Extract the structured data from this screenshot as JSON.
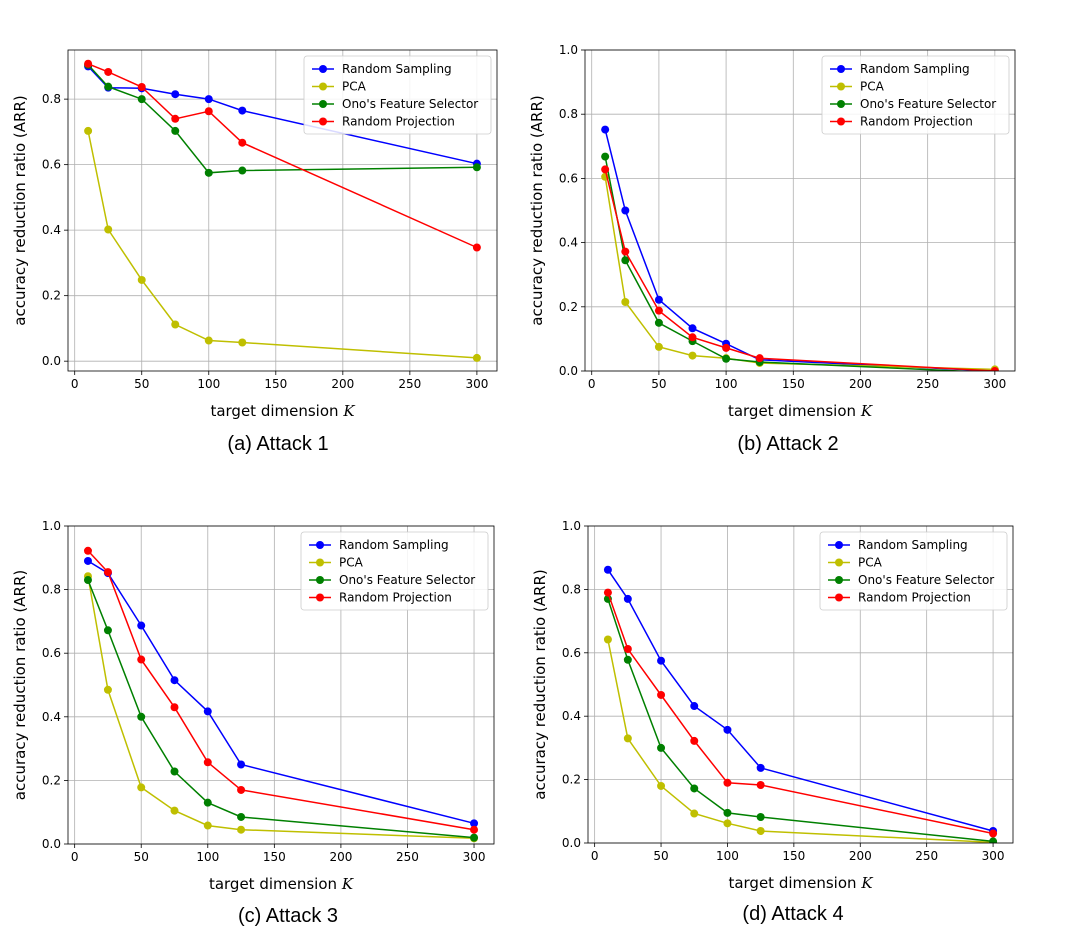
{
  "colors": {
    "Random Sampling": "#0000ff",
    "PCA": "#bfbf00",
    "Ono's Feature Selector": "#008000",
    "Random Projection": "#ff0000"
  },
  "chart_data": [
    {
      "type": "line",
      "caption": "(a)  Attack 1",
      "xlabel": "target dimension",
      "xlabel_var": "K",
      "ylabel": "accuracy reduction ratio (ARR)",
      "xlim": [
        -5,
        315
      ],
      "ylim": [
        -0.03,
        0.95
      ],
      "xticks": [
        0,
        50,
        100,
        150,
        200,
        250,
        300
      ],
      "yticks": [
        0.0,
        0.2,
        0.4,
        0.6,
        0.8
      ],
      "x": [
        10,
        25,
        50,
        75,
        100,
        125,
        300
      ],
      "grid": true,
      "legend_loc": "upper right",
      "series": [
        {
          "name": "Random Sampling",
          "values": [
            0.9,
            0.835,
            0.833,
            0.815,
            0.8,
            0.765,
            0.603
          ]
        },
        {
          "name": "PCA",
          "values": [
            0.703,
            0.402,
            0.248,
            0.112,
            0.063,
            0.057,
            0.01
          ]
        },
        {
          "name": "Ono's Feature Selector",
          "values": [
            0.905,
            0.838,
            0.8,
            0.703,
            0.575,
            0.582,
            0.592
          ]
        },
        {
          "name": "Random Projection",
          "values": [
            0.908,
            0.883,
            0.837,
            0.74,
            0.763,
            0.667,
            0.347
          ]
        }
      ]
    },
    {
      "type": "line",
      "caption": "(b)  Attack 2",
      "xlabel": "target dimension",
      "xlabel_var": "K",
      "ylabel": "accuracy reduction ratio (ARR)",
      "xlim": [
        -5,
        315
      ],
      "ylim": [
        0,
        1.0
      ],
      "xticks": [
        0,
        50,
        100,
        150,
        200,
        250,
        300
      ],
      "yticks": [
        0.0,
        0.2,
        0.4,
        0.6,
        0.8,
        1.0
      ],
      "x": [
        10,
        25,
        50,
        75,
        100,
        125,
        300
      ],
      "grid": true,
      "legend_loc": "upper right",
      "series": [
        {
          "name": "Random Sampling",
          "values": [
            0.752,
            0.5,
            0.222,
            0.133,
            0.085,
            0.035,
            0.0
          ]
        },
        {
          "name": "PCA",
          "values": [
            0.605,
            0.215,
            0.075,
            0.048,
            0.04,
            0.025,
            0.005
          ]
        },
        {
          "name": "Ono's Feature Selector",
          "values": [
            0.668,
            0.345,
            0.15,
            0.093,
            0.038,
            0.028,
            -0.005
          ]
        },
        {
          "name": "Random Projection",
          "values": [
            0.628,
            0.372,
            0.188,
            0.105,
            0.072,
            0.04,
            0.0
          ]
        }
      ]
    },
    {
      "type": "line",
      "caption": "(c)  Attack 3",
      "xlabel": "target dimension",
      "xlabel_var": "K",
      "ylabel": "accuracy reduction ratio (ARR)",
      "xlim": [
        -5,
        315
      ],
      "ylim": [
        0,
        1.0
      ],
      "xticks": [
        0,
        50,
        100,
        150,
        200,
        250,
        300
      ],
      "yticks": [
        0.0,
        0.2,
        0.4,
        0.6,
        0.8,
        1.0
      ],
      "x": [
        10,
        25,
        50,
        75,
        100,
        125,
        300
      ],
      "grid": true,
      "legend_loc": "upper right",
      "series": [
        {
          "name": "Random Sampling",
          "values": [
            0.89,
            0.852,
            0.687,
            0.515,
            0.417,
            0.25,
            0.065
          ]
        },
        {
          "name": "PCA",
          "values": [
            0.842,
            0.485,
            0.178,
            0.105,
            0.058,
            0.045,
            0.018
          ]
        },
        {
          "name": "Ono's Feature Selector",
          "values": [
            0.83,
            0.672,
            0.4,
            0.228,
            0.13,
            0.085,
            0.02
          ]
        },
        {
          "name": "Random Projection",
          "values": [
            0.922,
            0.855,
            0.58,
            0.43,
            0.257,
            0.17,
            0.045
          ]
        }
      ]
    },
    {
      "type": "line",
      "caption": "(d)  Attack 4",
      "xlabel": "target dimension",
      "xlabel_var": "K",
      "ylabel": "accuracy reduction ratio (ARR)",
      "xlim": [
        -5,
        315
      ],
      "ylim": [
        0,
        1.0
      ],
      "xticks": [
        0,
        50,
        100,
        150,
        200,
        250,
        300
      ],
      "yticks": [
        0.0,
        0.2,
        0.4,
        0.6,
        0.8,
        1.0
      ],
      "x": [
        10,
        25,
        50,
        75,
        100,
        125,
        300
      ],
      "grid": true,
      "legend_loc": "upper right",
      "series": [
        {
          "name": "Random Sampling",
          "values": [
            0.862,
            0.77,
            0.575,
            0.432,
            0.357,
            0.237,
            0.038
          ]
        },
        {
          "name": "PCA",
          "values": [
            0.642,
            0.33,
            0.18,
            0.093,
            0.062,
            0.038,
            0.002
          ]
        },
        {
          "name": "Ono's Feature Selector",
          "values": [
            0.77,
            0.578,
            0.3,
            0.172,
            0.095,
            0.082,
            0.005
          ]
        },
        {
          "name": "Random Projection",
          "values": [
            0.79,
            0.612,
            0.467,
            0.322,
            0.19,
            0.183,
            0.03
          ]
        }
      ]
    }
  ]
}
